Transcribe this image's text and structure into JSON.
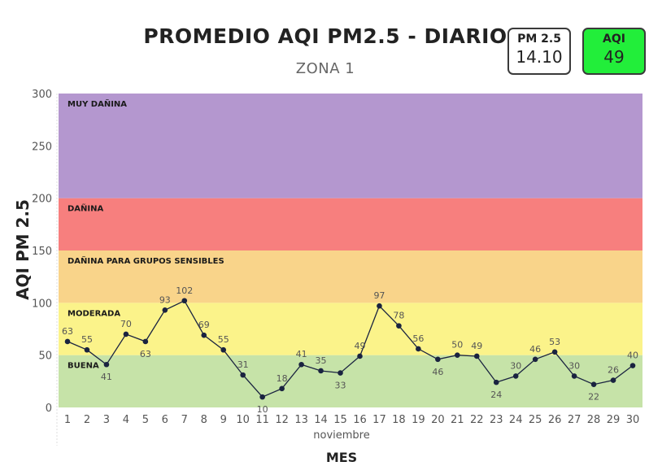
{
  "header": {
    "title": "PROMEDIO AQI PM2.5 - DIARIO",
    "subtitle": "ZONA 1"
  },
  "cards": {
    "pm": {
      "label": "PM 2.5",
      "value": "14.10"
    },
    "aqi": {
      "label": "AQI",
      "value": "49",
      "color": "#22ee3a"
    }
  },
  "chart_data": {
    "type": "line",
    "xlabel": "MES",
    "month_label": "noviembre",
    "ylabel": "AQI PM 2.5",
    "ylim": [
      0,
      300
    ],
    "yticks": [
      0,
      50,
      100,
      150,
      200,
      250,
      300
    ],
    "x": [
      1,
      2,
      3,
      4,
      5,
      6,
      7,
      8,
      9,
      10,
      11,
      12,
      13,
      14,
      15,
      16,
      17,
      18,
      19,
      20,
      21,
      22,
      23,
      24,
      25,
      26,
      27,
      28,
      29,
      30
    ],
    "series": [
      {
        "values": [
          63,
          55,
          41,
          70,
          63,
          93,
          102,
          69,
          55,
          31,
          10,
          18,
          41,
          35,
          33,
          49,
          97,
          78,
          56,
          46,
          50,
          49,
          24,
          30,
          46,
          53,
          30,
          22,
          26,
          40
        ],
        "color": "#1a2340"
      }
    ],
    "bands": [
      {
        "label": "BUENA",
        "from": 0,
        "to": 50,
        "color": "#c6e3a8"
      },
      {
        "label": "MODERADA",
        "from": 50,
        "to": 100,
        "color": "#fbf38a"
      },
      {
        "label": "DAÑINA PARA GRUPOS SENSIBLES",
        "from": 100,
        "to": 150,
        "color": "#f9d48a"
      },
      {
        "label": "DAÑINA",
        "from": 150,
        "to": 200,
        "color": "#f77f7e"
      },
      {
        "label": "MUY DAÑINA",
        "from": 200,
        "to": 300,
        "color": "#b497cf"
      }
    ],
    "grid": false
  }
}
